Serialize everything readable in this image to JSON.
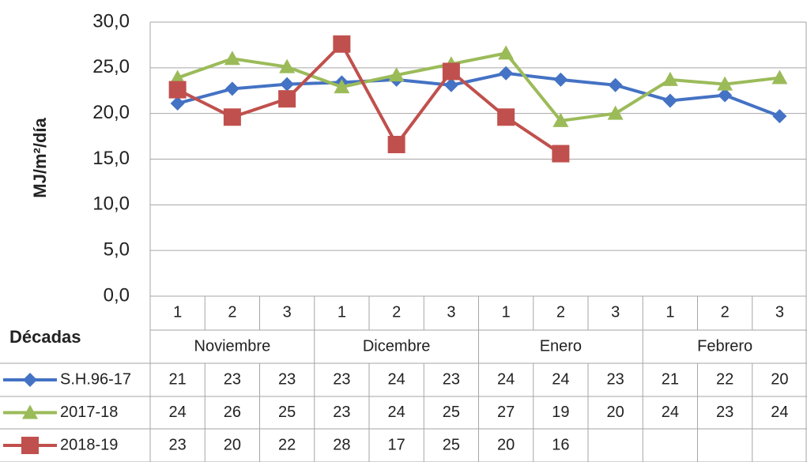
{
  "chart_data": {
    "type": "line",
    "ylabel": "MJ/m²/día",
    "xlabel": "Décadas",
    "categories": [
      "1",
      "2",
      "3",
      "1",
      "2",
      "3",
      "1",
      "2",
      "3",
      "1",
      "2",
      "3"
    ],
    "months": [
      "Noviembre",
      "Dicembre",
      "Enero",
      "Febrero"
    ],
    "ylim": [
      0,
      30
    ],
    "yticks": [
      {
        "value": 0,
        "label": "0,0"
      },
      {
        "value": 5,
        "label": "5,0"
      },
      {
        "value": 10,
        "label": "10,0"
      },
      {
        "value": 15,
        "label": "15,0"
      },
      {
        "value": 20,
        "label": "20,0"
      },
      {
        "value": 25,
        "label": "25,0"
      },
      {
        "value": 30,
        "label": "30,0"
      }
    ],
    "grid": true,
    "series": [
      {
        "name": "S.H.96-17",
        "color": "#4472c4",
        "marker": "diamond",
        "values": [
          21.1,
          22.7,
          23.2,
          23.4,
          23.7,
          23.1,
          24.4,
          23.7,
          23.1,
          21.4,
          22.0,
          19.7
        ],
        "value_labels": [
          "21",
          "23",
          "23",
          "23",
          "24",
          "23",
          "24",
          "24",
          "23",
          "21",
          "22",
          "20"
        ]
      },
      {
        "name": "2017-18",
        "color": "#9bbb59",
        "marker": "triangle",
        "values": [
          23.9,
          26.0,
          25.1,
          22.9,
          24.2,
          25.4,
          26.6,
          19.2,
          20.0,
          23.7,
          23.2,
          23.9
        ],
        "value_labels": [
          "24",
          "26",
          "25",
          "23",
          "24",
          "25",
          "27",
          "19",
          "20",
          "24",
          "23",
          "24"
        ]
      },
      {
        "name": "2018-19",
        "color": "#c0504d",
        "marker": "square",
        "values": [
          22.6,
          19.6,
          21.6,
          27.6,
          16.6,
          24.6,
          19.6,
          15.6,
          null,
          null,
          null,
          null
        ],
        "value_labels": [
          "23",
          "20",
          "22",
          "28",
          "17",
          "25",
          "20",
          "16",
          null,
          null,
          null,
          null
        ]
      }
    ]
  }
}
